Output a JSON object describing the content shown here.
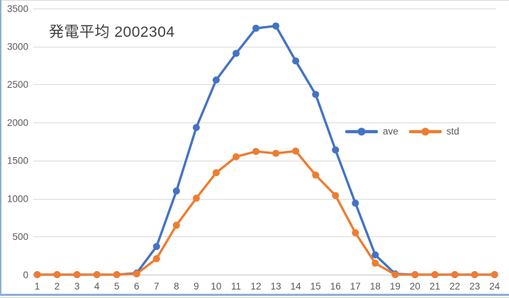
{
  "chart_data": {
    "type": "line",
    "title": "発電平均 2002304",
    "x": [
      1,
      2,
      3,
      4,
      5,
      6,
      7,
      8,
      9,
      10,
      11,
      12,
      13,
      14,
      15,
      16,
      17,
      18,
      19,
      20,
      21,
      22,
      23,
      24
    ],
    "xlabel": "",
    "ylabel": "",
    "ylim": [
      0,
      3500
    ],
    "yticks": [
      0,
      500,
      1000,
      1500,
      2000,
      2500,
      3000,
      3500
    ],
    "grid": "horizontal",
    "legend_position": "middle-right",
    "series": [
      {
        "name": "ave",
        "color": "#4472C4",
        "marker": "circle",
        "values": [
          0,
          0,
          0,
          0,
          0,
          20,
          370,
          1100,
          1935,
          2560,
          2910,
          3240,
          3270,
          2810,
          2370,
          1640,
          940,
          260,
          10,
          0,
          0,
          0,
          0,
          0
        ]
      },
      {
        "name": "std",
        "color": "#ED7D31",
        "marker": "circle",
        "values": [
          0,
          0,
          0,
          0,
          0,
          10,
          210,
          650,
          1005,
          1340,
          1550,
          1620,
          1595,
          1625,
          1310,
          1040,
          550,
          150,
          0,
          0,
          0,
          0,
          0,
          0
        ]
      }
    ]
  },
  "legend": {
    "items": [
      {
        "label": "ave",
        "color": "#4472C4"
      },
      {
        "label": "std",
        "color": "#ED7D31"
      }
    ]
  },
  "style": {
    "background": "#FFFFFF",
    "gridline_color": "#D9D9D9",
    "axis_line_color": "#C6C6C6",
    "tick_label_color": "#595959",
    "title_color": "#3F3F3F",
    "chart_border_blue": "#8FAFD6",
    "chart_border_blue_light": "#CBDAEC",
    "chart_border_top": "#D9D9D9"
  }
}
